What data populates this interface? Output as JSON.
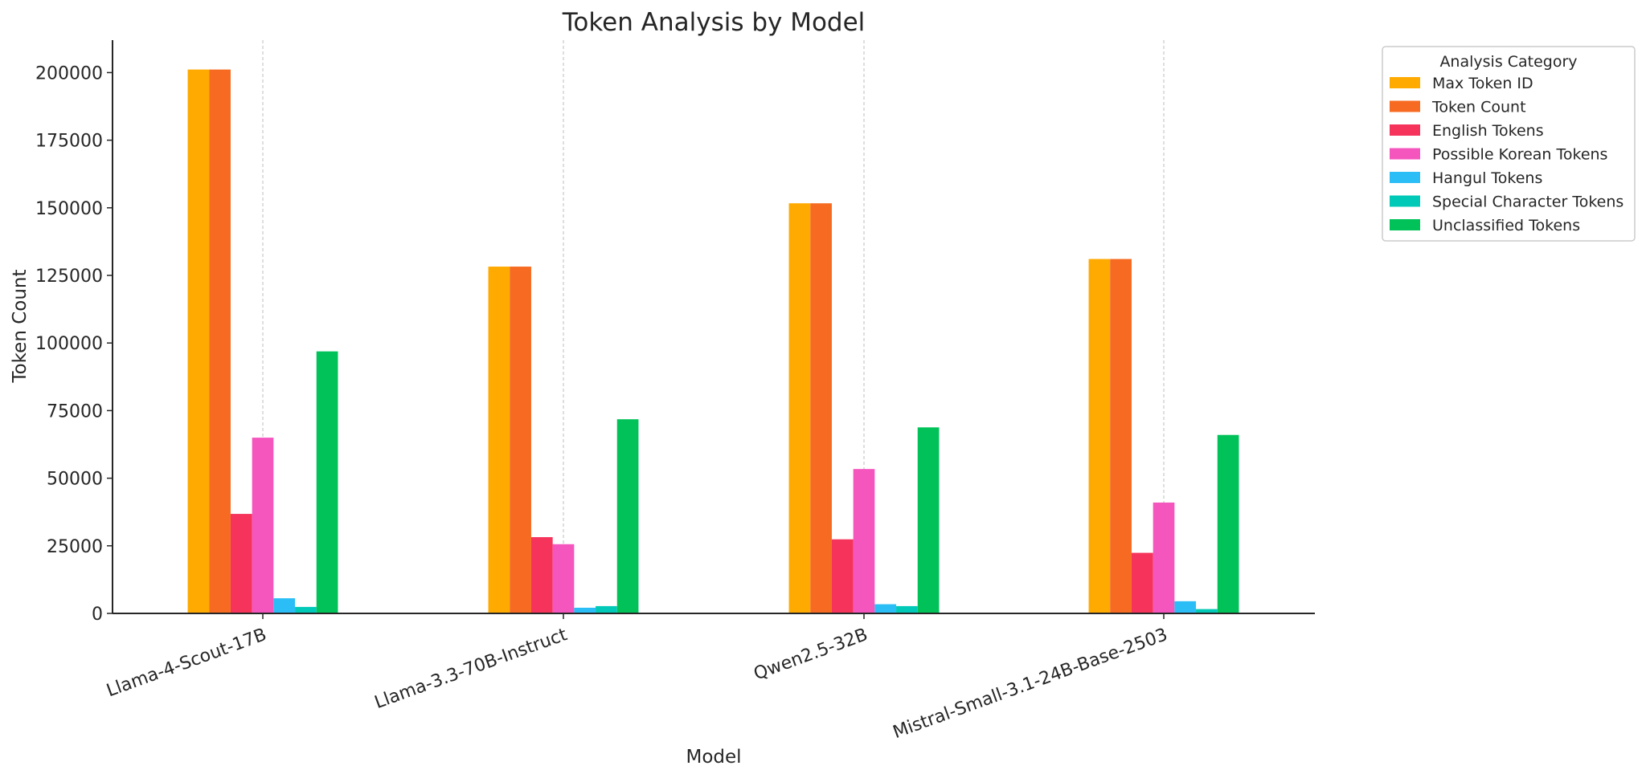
{
  "chart_data": {
    "type": "bar",
    "title": "Token Analysis by Model",
    "xlabel": "Model",
    "ylabel": "Token Count",
    "categories": [
      "Llama-4-Scout-17B",
      "Llama-3.3-70B-Instruct",
      "Qwen2.5-32B",
      "Mistral-Small-3.1-24B-Base-2503"
    ],
    "ylim": [
      0,
      212000
    ],
    "yticks": [
      0,
      25000,
      50000,
      75000,
      100000,
      125000,
      150000,
      175000,
      200000
    ],
    "grid": "x-dashed",
    "legend": {
      "title": "Analysis Category",
      "placement": "outside-top-right"
    },
    "series": [
      {
        "name": "Max Token ID",
        "color": "#FFAA00",
        "values": [
          201135,
          128256,
          151665,
          131072
        ]
      },
      {
        "name": "Token Count",
        "color": "#F66B21",
        "values": [
          201135,
          128256,
          151665,
          131072
        ]
      },
      {
        "name": "English Tokens",
        "color": "#F6335A",
        "values": [
          36800,
          28200,
          27400,
          22400
        ]
      },
      {
        "name": "Possible Korean Tokens",
        "color": "#F556BE",
        "values": [
          65000,
          25600,
          53400,
          41000
        ]
      },
      {
        "name": "Hangul Tokens",
        "color": "#2BBEF6",
        "values": [
          5600,
          2100,
          3400,
          4500
        ]
      },
      {
        "name": "Special Character Tokens",
        "color": "#00C9B7",
        "values": [
          2400,
          2700,
          2700,
          1600
        ]
      },
      {
        "name": "Unclassified Tokens",
        "color": "#00C259",
        "values": [
          96900,
          71800,
          68800,
          66000
        ]
      }
    ]
  }
}
